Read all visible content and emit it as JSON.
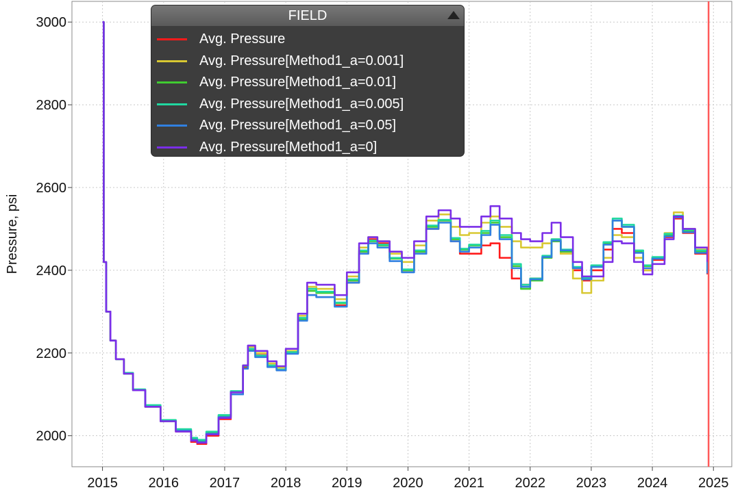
{
  "chart_data": {
    "type": "line",
    "ylabel": "Pressure, psi",
    "xlabel": "",
    "xlim": [
      2014.5,
      2025.3
    ],
    "ylim": [
      1925,
      3050
    ],
    "xticks": [
      "2015",
      "2016",
      "2017",
      "2018",
      "2019",
      "2020",
      "2021",
      "2022",
      "2023",
      "2024",
      "2025"
    ],
    "yticks": [
      "2000",
      "2200",
      "2400",
      "2600",
      "2800",
      "3000"
    ],
    "grid": true,
    "legend_placement": "top-center",
    "legend_title": "FIELD",
    "marker_line_x": 2024.92,
    "marker_line_color": "#ff5a5a",
    "series": [
      {
        "name": "Avg. Pressure",
        "color": "#ff1a1a",
        "x": [
          2015.0,
          2015.02,
          2015.06,
          2015.13,
          2015.22,
          2015.35,
          2015.5,
          2015.7,
          2015.95,
          2016.2,
          2016.45,
          2016.55,
          2016.7,
          2016.9,
          2017.1,
          2017.3,
          2017.38,
          2017.5,
          2017.7,
          2017.85,
          2018.0,
          2018.2,
          2018.35,
          2018.5,
          2018.8,
          2019.0,
          2019.2,
          2019.35,
          2019.5,
          2019.7,
          2019.9,
          2020.1,
          2020.3,
          2020.5,
          2020.7,
          2020.85,
          2021.0,
          2021.2,
          2021.35,
          2021.5,
          2021.7,
          2021.85,
          2022.0,
          2022.2,
          2022.35,
          2022.5,
          2022.7,
          2022.85,
          2023.0,
          2023.2,
          2023.35,
          2023.5,
          2023.7,
          2023.85,
          2024.0,
          2024.2,
          2024.35,
          2024.5,
          2024.7,
          2024.9
        ],
        "y": [
          3000,
          2420,
          2300,
          2230,
          2185,
          2150,
          2110,
          2070,
          2035,
          2010,
          1985,
          1980,
          2000,
          2040,
          2100,
          2165,
          2210,
          2195,
          2170,
          2160,
          2200,
          2280,
          2340,
          2335,
          2315,
          2370,
          2440,
          2475,
          2465,
          2430,
          2400,
          2440,
          2500,
          2520,
          2470,
          2440,
          2440,
          2460,
          2465,
          2430,
          2380,
          2365,
          2380,
          2430,
          2470,
          2440,
          2400,
          2375,
          2400,
          2450,
          2500,
          2490,
          2430,
          2400,
          2425,
          2480,
          2525,
          2490,
          2440,
          2390
        ]
      },
      {
        "name": "Avg. Pressure[Method1_a=0.001]",
        "color": "#d8c832",
        "x": [
          2015.0,
          2015.02,
          2015.06,
          2015.13,
          2015.22,
          2015.35,
          2015.5,
          2015.7,
          2015.95,
          2016.2,
          2016.45,
          2016.55,
          2016.7,
          2016.9,
          2017.1,
          2017.3,
          2017.38,
          2017.5,
          2017.7,
          2017.85,
          2018.0,
          2018.2,
          2018.35,
          2018.5,
          2018.8,
          2019.0,
          2019.2,
          2019.35,
          2019.5,
          2019.7,
          2019.9,
          2020.1,
          2020.3,
          2020.5,
          2020.7,
          2020.85,
          2021.0,
          2021.2,
          2021.35,
          2021.5,
          2021.7,
          2021.85,
          2022.0,
          2022.2,
          2022.35,
          2022.5,
          2022.7,
          2022.85,
          2023.0,
          2023.2,
          2023.35,
          2023.5,
          2023.7,
          2023.85,
          2024.0,
          2024.2,
          2024.35,
          2024.5,
          2024.7,
          2024.9
        ],
        "y": [
          3000,
          2420,
          2300,
          2230,
          2185,
          2150,
          2110,
          2070,
          2035,
          2012,
          1990,
          1985,
          2005,
          2045,
          2105,
          2170,
          2215,
          2200,
          2175,
          2165,
          2205,
          2290,
          2360,
          2355,
          2330,
          2385,
          2455,
          2480,
          2470,
          2440,
          2420,
          2460,
          2520,
          2535,
          2505,
          2485,
          2490,
          2515,
          2530,
          2505,
          2470,
          2455,
          2455,
          2465,
          2475,
          2440,
          2380,
          2345,
          2375,
          2430,
          2485,
          2480,
          2430,
          2400,
          2430,
          2490,
          2540,
          2500,
          2450,
          2400
        ]
      },
      {
        "name": "Avg. Pressure[Method1_a=0.01]",
        "color": "#40cc30",
        "x": [
          2015.0,
          2015.02,
          2015.06,
          2015.13,
          2015.22,
          2015.35,
          2015.5,
          2015.7,
          2015.95,
          2016.2,
          2016.45,
          2016.55,
          2016.7,
          2016.9,
          2017.1,
          2017.3,
          2017.38,
          2017.5,
          2017.7,
          2017.85,
          2018.0,
          2018.2,
          2018.35,
          2018.5,
          2018.8,
          2019.0,
          2019.2,
          2019.35,
          2019.5,
          2019.7,
          2019.9,
          2020.1,
          2020.3,
          2020.5,
          2020.7,
          2020.85,
          2021.0,
          2021.2,
          2021.35,
          2021.5,
          2021.7,
          2021.85,
          2022.0,
          2022.2,
          2022.35,
          2022.5,
          2022.7,
          2022.85,
          2023.0,
          2023.2,
          2023.35,
          2023.5,
          2023.7,
          2023.85,
          2024.0,
          2024.2,
          2024.35,
          2024.5,
          2024.7,
          2024.9
        ],
        "y": [
          3000,
          2420,
          2300,
          2230,
          2185,
          2150,
          2110,
          2072,
          2037,
          2014,
          1992,
          1988,
          2008,
          2048,
          2105,
          2168,
          2208,
          2192,
          2168,
          2158,
          2200,
          2282,
          2350,
          2345,
          2320,
          2375,
          2445,
          2470,
          2460,
          2428,
          2400,
          2445,
          2505,
          2520,
          2475,
          2450,
          2460,
          2490,
          2515,
          2480,
          2410,
          2355,
          2375,
          2430,
          2470,
          2445,
          2405,
          2380,
          2410,
          2465,
          2520,
          2505,
          2445,
          2410,
          2430,
          2485,
          2530,
          2495,
          2445,
          2395
        ]
      },
      {
        "name": "Avg. Pressure[Method1_a=0.005]",
        "color": "#20d8a0",
        "x": [
          2015.0,
          2015.02,
          2015.06,
          2015.13,
          2015.22,
          2015.35,
          2015.5,
          2015.7,
          2015.95,
          2016.2,
          2016.45,
          2016.55,
          2016.7,
          2016.9,
          2017.1,
          2017.3,
          2017.38,
          2017.5,
          2017.7,
          2017.85,
          2018.0,
          2018.2,
          2018.35,
          2018.5,
          2018.8,
          2019.0,
          2019.2,
          2019.35,
          2019.5,
          2019.7,
          2019.9,
          2020.1,
          2020.3,
          2020.5,
          2020.7,
          2020.85,
          2021.0,
          2021.2,
          2021.35,
          2021.5,
          2021.7,
          2021.85,
          2022.0,
          2022.2,
          2022.35,
          2022.5,
          2022.7,
          2022.85,
          2023.0,
          2023.2,
          2023.35,
          2023.5,
          2023.7,
          2023.85,
          2024.0,
          2024.2,
          2024.35,
          2024.5,
          2024.7,
          2024.9
        ],
        "y": [
          3000,
          2420,
          2300,
          2230,
          2185,
          2152,
          2112,
          2074,
          2038,
          2016,
          1995,
          1990,
          2010,
          2050,
          2108,
          2170,
          2210,
          2194,
          2170,
          2160,
          2202,
          2285,
          2355,
          2348,
          2322,
          2378,
          2448,
          2472,
          2462,
          2430,
          2402,
          2448,
          2508,
          2522,
          2478,
          2452,
          2462,
          2495,
          2520,
          2485,
          2415,
          2365,
          2380,
          2435,
          2475,
          2450,
          2408,
          2382,
          2412,
          2468,
          2525,
          2510,
          2448,
          2412,
          2432,
          2488,
          2532,
          2498,
          2448,
          2398
        ]
      },
      {
        "name": "Avg. Pressure[Method1_a=0.05]",
        "color": "#3080e0",
        "x": [
          2015.0,
          2015.02,
          2015.06,
          2015.13,
          2015.22,
          2015.35,
          2015.5,
          2015.7,
          2015.95,
          2016.2,
          2016.45,
          2016.55,
          2016.7,
          2016.9,
          2017.1,
          2017.3,
          2017.38,
          2017.5,
          2017.7,
          2017.85,
          2018.0,
          2018.2,
          2018.35,
          2018.5,
          2018.8,
          2019.0,
          2019.2,
          2019.35,
          2019.5,
          2019.7,
          2019.9,
          2020.1,
          2020.3,
          2020.5,
          2020.7,
          2020.85,
          2021.0,
          2021.2,
          2021.35,
          2021.5,
          2021.7,
          2021.85,
          2022.0,
          2022.2,
          2022.35,
          2022.5,
          2022.7,
          2022.85,
          2023.0,
          2023.2,
          2023.35,
          2023.5,
          2023.7,
          2023.85,
          2024.0,
          2024.2,
          2024.35,
          2024.5,
          2024.7,
          2024.9
        ],
        "y": [
          3000,
          2420,
          2300,
          2230,
          2185,
          2150,
          2110,
          2070,
          2035,
          2012,
          1990,
          1985,
          2005,
          2045,
          2100,
          2162,
          2205,
          2190,
          2166,
          2158,
          2198,
          2278,
          2340,
          2335,
          2312,
          2370,
          2440,
          2465,
          2455,
          2422,
          2395,
          2440,
          2500,
          2515,
          2470,
          2445,
          2455,
          2485,
          2510,
          2475,
          2405,
          2360,
          2378,
          2432,
          2472,
          2448,
          2405,
          2378,
          2408,
          2462,
          2520,
          2505,
          2442,
          2405,
          2428,
          2482,
          2528,
          2492,
          2442,
          2392
        ]
      },
      {
        "name": "Avg. Pressure[Method1_a=0]",
        "color": "#7a2ee8",
        "x": [
          2015.0,
          2015.02,
          2015.06,
          2015.13,
          2015.22,
          2015.35,
          2015.5,
          2015.7,
          2015.95,
          2016.2,
          2016.45,
          2016.55,
          2016.7,
          2016.9,
          2017.1,
          2017.3,
          2017.38,
          2017.5,
          2017.7,
          2017.85,
          2018.0,
          2018.2,
          2018.35,
          2018.5,
          2018.8,
          2019.0,
          2019.2,
          2019.35,
          2019.5,
          2019.7,
          2019.9,
          2020.1,
          2020.3,
          2020.5,
          2020.7,
          2020.85,
          2021.0,
          2021.2,
          2021.35,
          2021.5,
          2021.7,
          2021.85,
          2022.0,
          2022.2,
          2022.35,
          2022.5,
          2022.7,
          2022.85,
          2023.0,
          2023.2,
          2023.35,
          2023.5,
          2023.7,
          2023.85,
          2024.0,
          2024.2,
          2024.35,
          2024.5,
          2024.7,
          2024.9
        ],
        "y": [
          3000,
          2420,
          2300,
          2230,
          2185,
          2150,
          2110,
          2070,
          2035,
          2010,
          1988,
          1983,
          2003,
          2043,
          2105,
          2170,
          2218,
          2205,
          2180,
          2168,
          2210,
          2295,
          2370,
          2365,
          2340,
          2395,
          2465,
          2480,
          2470,
          2445,
          2430,
          2470,
          2530,
          2545,
          2525,
          2505,
          2505,
          2530,
          2555,
          2525,
          2490,
          2475,
          2470,
          2490,
          2515,
          2480,
          2420,
          2385,
          2385,
          2420,
          2470,
          2465,
          2420,
          2390,
          2415,
          2475,
          2530,
          2500,
          2455,
          2420
        ]
      }
    ]
  }
}
